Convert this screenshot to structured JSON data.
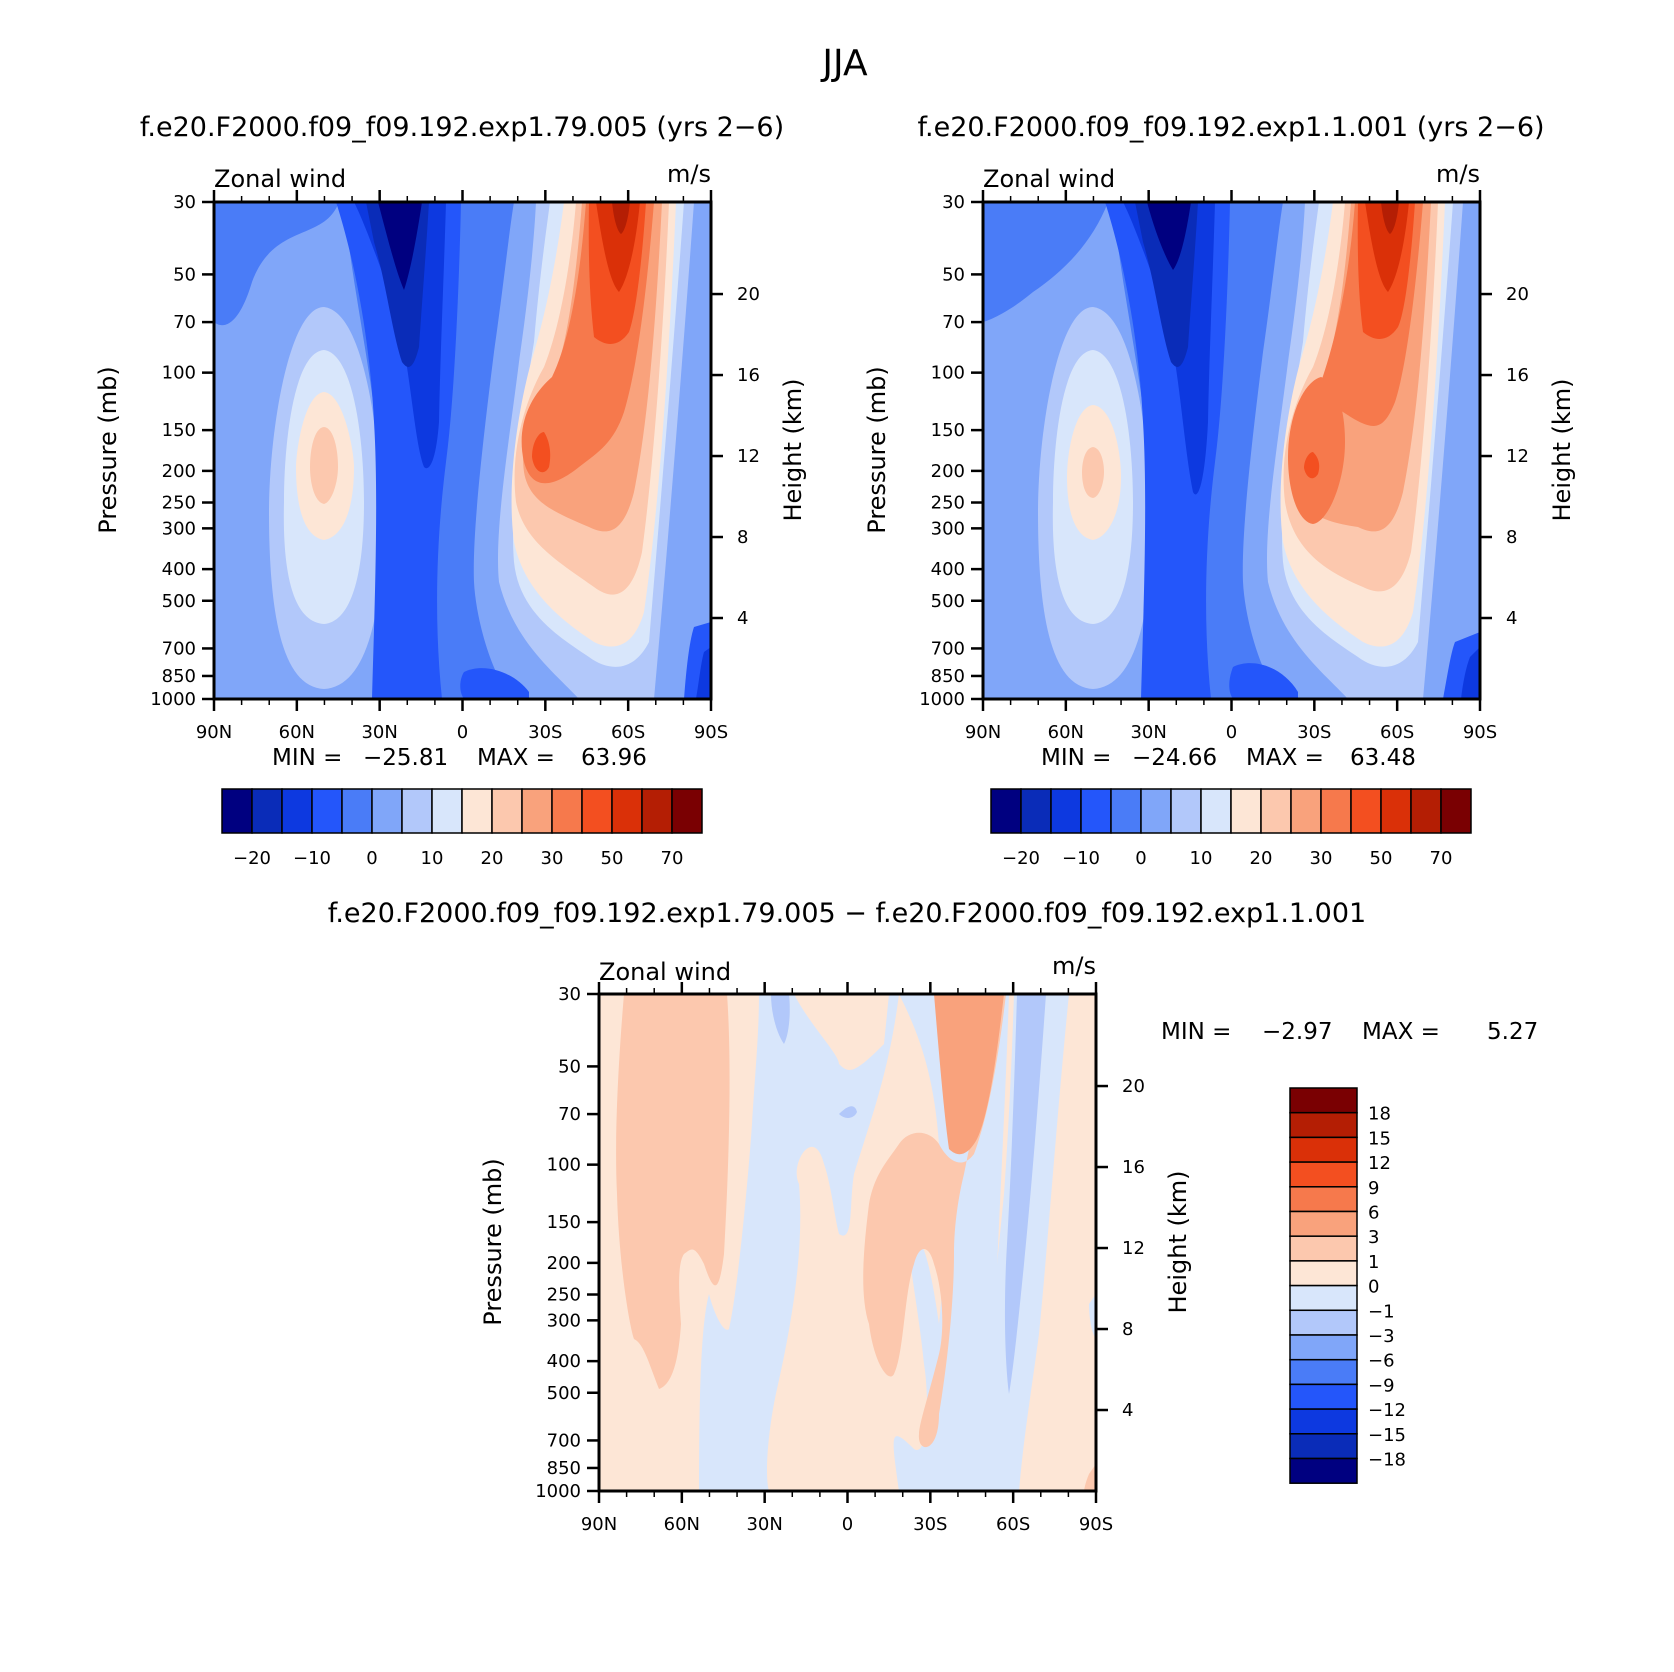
{
  "figure": {
    "title": "JJA"
  },
  "chart_data": [
    {
      "type": "heatmap",
      "id": "panel1",
      "subtitle": "f.e20.F2000.f09_f09.192.exp1.79.005 (yrs 2−6)",
      "left_string": "Zonal wind",
      "right_string": "m/s",
      "ylabel": "Pressure (mb)",
      "ylabel_right": "Height (km)",
      "x_ticks": [
        "90N",
        "60N",
        "30N",
        "0",
        "30S",
        "60S",
        "90S"
      ],
      "x_values": [
        90,
        60,
        30,
        0,
        -30,
        -60,
        -90
      ],
      "y_ticks": [
        "30",
        "50",
        "70",
        "100",
        "150",
        "200",
        "250",
        "300",
        "400",
        "500",
        "700",
        "850",
        "1000"
      ],
      "y_values": [
        30,
        50,
        70,
        100,
        150,
        200,
        250,
        300,
        400,
        500,
        700,
        850,
        1000
      ],
      "height_ticks": [
        "20",
        "16",
        "12",
        "8",
        "4"
      ],
      "height_values": [
        20,
        16,
        12,
        8,
        4
      ],
      "min_label": "MIN =",
      "min_value": "−25.81",
      "max_label": "MAX =",
      "max_value": "63.96",
      "levels": [
        -25,
        -20,
        -15,
        -10,
        -5,
        0,
        5,
        10,
        15,
        20,
        25,
        30,
        40,
        50,
        60,
        70
      ],
      "colors": [
        "#000080",
        "#0a2cb8",
        "#0d39e0",
        "#2456fa",
        "#4a7cf7",
        "#80a6f9",
        "#b2c8fa",
        "#d8e6fb",
        "#fde6d6",
        "#fcc8ae",
        "#f9a27c",
        "#f6794c",
        "#f34f20",
        "#da3008",
        "#b41e04",
        "#7a0002"
      ],
      "colorbar_labels": [
        "−20",
        "−10",
        "0",
        "10",
        "20",
        "30",
        "50",
        "70"
      ],
      "features": [
        {
          "name": "southern-hemisphere-winter-jet",
          "center": [
            -40,
            200
          ],
          "peak": 63.96,
          "unit": "m/s"
        },
        {
          "name": "tropical-easterlies",
          "center": [
            20,
            30
          ],
          "peak": -25.81,
          "unit": "m/s"
        },
        {
          "name": "northern-subtropical-jet",
          "center": [
            45,
            200
          ],
          "peak": 20,
          "unit": "m/s"
        }
      ]
    },
    {
      "type": "heatmap",
      "id": "panel2",
      "subtitle": "f.e20.F2000.f09_f09.192.exp1.1.001 (yrs 2−6)",
      "left_string": "Zonal wind",
      "right_string": "m/s",
      "ylabel": "Pressure (mb)",
      "ylabel_right": "Height (km)",
      "x_ticks": [
        "90N",
        "60N",
        "30N",
        "0",
        "30S",
        "60S",
        "90S"
      ],
      "x_values": [
        90,
        60,
        30,
        0,
        -30,
        -60,
        -90
      ],
      "y_ticks": [
        "30",
        "50",
        "70",
        "100",
        "150",
        "200",
        "250",
        "300",
        "400",
        "500",
        "700",
        "850",
        "1000"
      ],
      "y_values": [
        30,
        50,
        70,
        100,
        150,
        200,
        250,
        300,
        400,
        500,
        700,
        850,
        1000
      ],
      "height_ticks": [
        "20",
        "16",
        "12",
        "8",
        "4"
      ],
      "height_values": [
        20,
        16,
        12,
        8,
        4
      ],
      "min_label": "MIN =",
      "min_value": "−24.66",
      "max_label": "MAX =",
      "max_value": "63.48",
      "levels": [
        -25,
        -20,
        -15,
        -10,
        -5,
        0,
        5,
        10,
        15,
        20,
        25,
        30,
        40,
        50,
        60,
        70
      ],
      "colors": [
        "#000080",
        "#0a2cb8",
        "#0d39e0",
        "#2456fa",
        "#4a7cf7",
        "#80a6f9",
        "#b2c8fa",
        "#d8e6fb",
        "#fde6d6",
        "#fcc8ae",
        "#f9a27c",
        "#f6794c",
        "#f34f20",
        "#da3008",
        "#b41e04",
        "#7a0002"
      ],
      "colorbar_labels": [
        "−20",
        "−10",
        "0",
        "10",
        "20",
        "30",
        "50",
        "70"
      ],
      "features": [
        {
          "name": "southern-hemisphere-winter-jet",
          "center": [
            -40,
            200
          ],
          "peak": 63.48,
          "unit": "m/s"
        },
        {
          "name": "tropical-easterlies",
          "center": [
            20,
            30
          ],
          "peak": -24.66,
          "unit": "m/s"
        },
        {
          "name": "northern-subtropical-jet",
          "center": [
            45,
            200
          ],
          "peak": 20,
          "unit": "m/s"
        }
      ]
    },
    {
      "type": "heatmap",
      "id": "panel3",
      "subtitle": "f.e20.F2000.f09_f09.192.exp1.79.005 − f.e20.F2000.f09_f09.192.exp1.1.001",
      "left_string": "Zonal wind",
      "right_string": "m/s",
      "ylabel": "Pressure (mb)",
      "ylabel_right": "Height (km)",
      "x_ticks": [
        "90N",
        "60N",
        "30N",
        "0",
        "30S",
        "60S",
        "90S"
      ],
      "x_values": [
        90,
        60,
        30,
        0,
        -30,
        -60,
        -90
      ],
      "y_ticks": [
        "30",
        "50",
        "70",
        "100",
        "150",
        "200",
        "250",
        "300",
        "400",
        "500",
        "700",
        "850",
        "1000"
      ],
      "y_values": [
        30,
        50,
        70,
        100,
        150,
        200,
        250,
        300,
        400,
        500,
        700,
        850,
        1000
      ],
      "height_ticks": [
        "20",
        "16",
        "12",
        "8",
        "4"
      ],
      "height_values": [
        20,
        16,
        12,
        8,
        4
      ],
      "min_label": "MIN =",
      "min_value": "−2.97",
      "max_label": "MAX =",
      "max_value": "5.27",
      "levels": [
        -18,
        -15,
        -12,
        -9,
        -6,
        -3,
        -1,
        0,
        1,
        3,
        6,
        9,
        12,
        15,
        18
      ],
      "colors": [
        "#000080",
        "#0a2cb8",
        "#0d39e0",
        "#2456fa",
        "#4a7cf7",
        "#80a6f9",
        "#b2c8fa",
        "#d8e6fb",
        "#fde6d6",
        "#fcc8ae",
        "#f9a27c",
        "#f6794c",
        "#f34f20",
        "#da3008",
        "#b41e04",
        "#7a0002"
      ],
      "colorbar_labels": [
        "18",
        "15",
        "12",
        "9",
        "6",
        "3",
        "1",
        "0",
        "−1",
        "−3",
        "−6",
        "−9",
        "−12",
        "−15",
        "−18"
      ],
      "features": [
        {
          "name": "southern-midlatitude-increase",
          "center": [
            -40,
            80
          ],
          "peak": 5.27,
          "unit": "m/s"
        },
        {
          "name": "tropical-decrease",
          "center": [
            25,
            100
          ],
          "peak": -1,
          "unit": "m/s"
        },
        {
          "name": "southern-high-latitude-decrease",
          "center": [
            -67,
            150
          ],
          "peak": -2.97,
          "unit": "m/s"
        }
      ]
    }
  ]
}
